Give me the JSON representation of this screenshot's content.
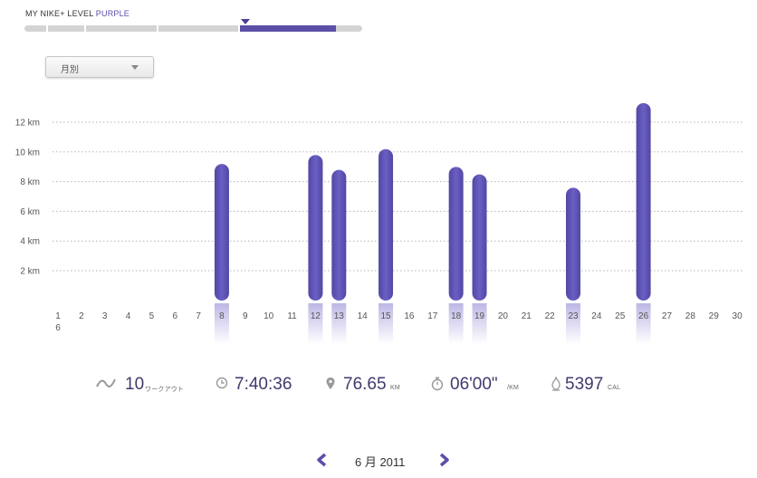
{
  "level": {
    "title": "MY NIKE+ LEVEL",
    "level_name": "PURPLE",
    "colors": {
      "track": "#d4d4d4",
      "fill": "#5b4fa8",
      "marker": "#4a3f96"
    }
  },
  "period_selector": {
    "selected": "月別",
    "icon": "chevron-down-icon"
  },
  "chart_data": {
    "type": "bar",
    "categories": [
      "1 6",
      "2",
      "3",
      "4",
      "5",
      "6",
      "7",
      "8",
      "9",
      "10",
      "11",
      "12",
      "13",
      "14",
      "15",
      "16",
      "17",
      "18",
      "19",
      "20",
      "21",
      "22",
      "23",
      "24",
      "25",
      "26",
      "27",
      "28",
      "29",
      "30"
    ],
    "values": [
      0,
      0,
      0,
      0,
      0,
      0,
      0,
      9.2,
      0,
      0,
      0,
      9.8,
      8.8,
      0,
      10.2,
      0,
      0,
      9.0,
      8.5,
      0,
      0,
      0,
      7.6,
      0,
      0,
      13.3,
      0,
      0,
      0,
      0
    ],
    "y_ticks": [
      "2 km",
      "4 km",
      "6 km",
      "8 km",
      "10 km",
      "12 km"
    ],
    "ylim": [
      0,
      14
    ],
    "grid": true,
    "bar_color": "#5b4fb0"
  },
  "stats": {
    "workouts": {
      "value": "10",
      "unit": "ワークアウト",
      "icon": "activity-line-icon"
    },
    "duration": {
      "value": "7:40:36",
      "icon": "clock-icon"
    },
    "distance": {
      "value": "76.65",
      "unit": "KM",
      "icon": "map-pin-icon"
    },
    "pace": {
      "value": "06'00\"",
      "unit": "/KM",
      "icon": "stopwatch-icon"
    },
    "calories": {
      "value": "5397",
      "unit": "CAL",
      "icon": "flame-icon"
    }
  },
  "month_nav": {
    "label": "6 月 2011",
    "prev_icon": "chevron-left-icon",
    "next_icon": "chevron-right-icon"
  }
}
